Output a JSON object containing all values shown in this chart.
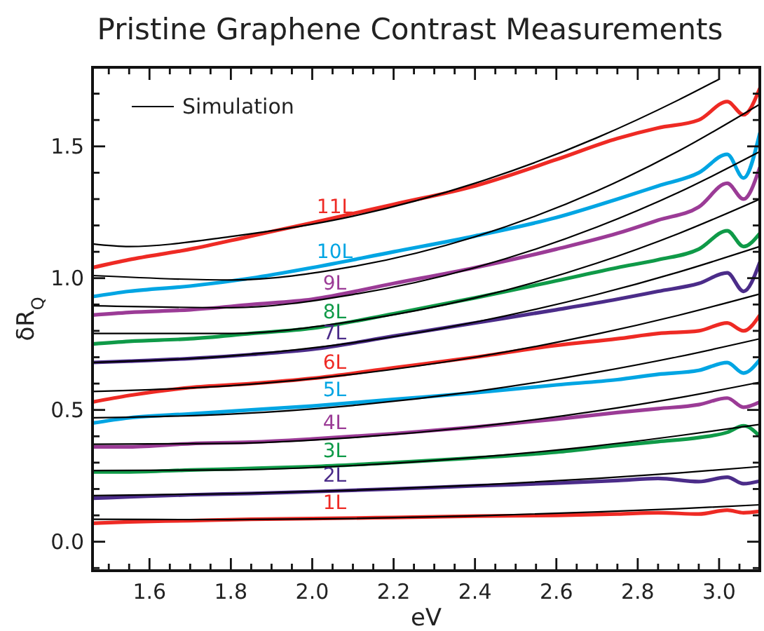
{
  "chart_data": {
    "type": "line",
    "title": "Pristine Graphene Contrast Measurements",
    "xlabel": "eV",
    "ylabel": "δR$_{Q}$",
    "xlim": [
      1.46,
      3.1
    ],
    "ylim": [
      -0.11,
      1.8
    ],
    "xticks": [
      {
        "value": 1.5,
        "label": null
      },
      {
        "value": 1.55,
        "label": null
      },
      1.6,
      {
        "value": 1.65,
        "label": null
      },
      {
        "value": 1.7,
        "label": null
      },
      {
        "value": 1.75,
        "label": null
      },
      1.8,
      {
        "value": 1.85,
        "label": null
      },
      {
        "value": 1.9,
        "label": null
      },
      {
        "value": 1.95,
        "label": null
      },
      {
        "value": 2.0,
        "label": "2.0"
      },
      {
        "value": 2.05,
        "label": null
      },
      {
        "value": 2.1,
        "label": null
      },
      {
        "value": 2.15,
        "label": null
      },
      2.2,
      {
        "value": 2.25,
        "label": null
      },
      {
        "value": 2.3,
        "label": null
      },
      {
        "value": 2.35,
        "label": null
      },
      2.4,
      {
        "value": 2.45,
        "label": null
      },
      {
        "value": 2.5,
        "label": null
      },
      {
        "value": 2.55,
        "label": null
      },
      2.6,
      {
        "value": 2.65,
        "label": null
      },
      {
        "value": 2.7,
        "label": null
      },
      {
        "value": 2.75,
        "label": null
      },
      2.8,
      {
        "value": 2.85,
        "label": null
      },
      {
        "value": 2.9,
        "label": null
      },
      {
        "value": 2.95,
        "label": null
      },
      {
        "value": 3.0,
        "label": "3.0"
      },
      {
        "value": 3.05,
        "label": null
      }
    ],
    "yticks": [
      {
        "value": -0.1,
        "label": null
      },
      {
        "value": 0,
        "label": "0.0"
      },
      {
        "value": 0.1,
        "label": null
      },
      {
        "value": 0.2,
        "label": null
      },
      {
        "value": 0.3,
        "label": null
      },
      {
        "value": 0.4,
        "label": null
      },
      0.5,
      {
        "value": 0.6,
        "label": null
      },
      {
        "value": 0.7,
        "label": null
      },
      {
        "value": 0.8,
        "label": null
      },
      {
        "value": 0.9,
        "label": null
      },
      {
        "value": 1.0,
        "label": "1.0"
      },
      {
        "value": 1.1,
        "label": null
      },
      {
        "value": 1.2,
        "label": null
      },
      {
        "value": 1.3,
        "label": null
      },
      {
        "value": 1.4,
        "label": null
      },
      1.5,
      {
        "value": 1.6,
        "label": null
      },
      {
        "value": 1.7,
        "label": null
      }
    ],
    "grid": false,
    "legend": "top left",
    "x": [
      1.46,
      1.55,
      1.7,
      1.85,
      2.0,
      2.2,
      2.4,
      2.6,
      2.75,
      2.85,
      2.95,
      3.02,
      3.06,
      3.1
    ],
    "series": [
      {
        "name": "1L",
        "color": "#ee2a24",
        "values": [
          0.07,
          0.075,
          0.08,
          0.085,
          0.088,
          0.092,
          0.097,
          0.1,
          0.105,
          0.11,
          0.105,
          0.12,
          0.11,
          0.115
        ]
      },
      {
        "name": "2L",
        "color": "#4b2c89",
        "values": [
          0.165,
          0.17,
          0.178,
          0.183,
          0.19,
          0.2,
          0.212,
          0.222,
          0.232,
          0.24,
          0.228,
          0.245,
          0.22,
          0.23
        ]
      },
      {
        "name": "3L",
        "color": "#0f9a48",
        "values": [
          0.265,
          0.265,
          0.272,
          0.278,
          0.285,
          0.3,
          0.318,
          0.34,
          0.365,
          0.38,
          0.395,
          0.415,
          0.44,
          0.4
        ]
      },
      {
        "name": "4L",
        "color": "#9b3b96",
        "values": [
          0.36,
          0.36,
          0.372,
          0.378,
          0.39,
          0.41,
          0.435,
          0.465,
          0.49,
          0.505,
          0.52,
          0.545,
          0.51,
          0.53
        ]
      },
      {
        "name": "5L",
        "color": "#00a5e3",
        "values": [
          0.45,
          0.47,
          0.485,
          0.5,
          0.515,
          0.54,
          0.565,
          0.595,
          0.615,
          0.635,
          0.65,
          0.68,
          0.64,
          0.69
        ]
      },
      {
        "name": "6L",
        "color": "#ee2a24",
        "values": [
          0.53,
          0.555,
          0.585,
          0.6,
          0.62,
          0.66,
          0.7,
          0.745,
          0.77,
          0.79,
          0.8,
          0.83,
          0.8,
          0.86
        ]
      },
      {
        "name": "7L",
        "color": "#4b2c89",
        "values": [
          0.68,
          0.685,
          0.695,
          0.71,
          0.73,
          0.78,
          0.83,
          0.88,
          0.92,
          0.95,
          0.98,
          1.02,
          0.95,
          1.06
        ]
      },
      {
        "name": "8L",
        "color": "#0f9a48",
        "values": [
          0.75,
          0.76,
          0.77,
          0.79,
          0.81,
          0.865,
          0.925,
          0.99,
          1.04,
          1.07,
          1.11,
          1.18,
          1.12,
          1.17
        ]
      },
      {
        "name": "9L",
        "color": "#9b3b96",
        "values": [
          0.86,
          0.87,
          0.88,
          0.9,
          0.92,
          0.98,
          1.04,
          1.11,
          1.17,
          1.22,
          1.27,
          1.36,
          1.3,
          1.42
        ]
      },
      {
        "name": "10L",
        "color": "#00a5e3",
        "values": [
          0.93,
          0.95,
          0.97,
          1.0,
          1.04,
          1.1,
          1.16,
          1.23,
          1.3,
          1.35,
          1.4,
          1.47,
          1.38,
          1.55
        ]
      },
      {
        "name": "11L",
        "color": "#ee2a24",
        "values": [
          1.04,
          1.07,
          1.11,
          1.16,
          1.21,
          1.28,
          1.35,
          1.45,
          1.53,
          1.57,
          1.6,
          1.67,
          1.62,
          1.72
        ]
      },
      {
        "name": "Simulation",
        "color": "#000000",
        "x": [
          1.46,
          1.8,
          2.1,
          2.4,
          2.7,
          2.9,
          3.1
        ],
        "values": [
          0.085,
          0.084,
          0.088,
          0.098,
          0.113,
          0.125,
          0.14
        ]
      },
      {
        "color": "#000000",
        "x": [
          1.46,
          1.8,
          2.1,
          2.4,
          2.7,
          2.9,
          3.1
        ],
        "values": [
          0.175,
          0.182,
          0.195,
          0.214,
          0.24,
          0.261,
          0.285
        ]
      },
      {
        "color": "#000000",
        "x": [
          1.46,
          1.8,
          2.1,
          2.4,
          2.7,
          2.9,
          3.1
        ],
        "values": [
          0.27,
          0.272,
          0.289,
          0.32,
          0.364,
          0.402,
          0.445
        ]
      },
      {
        "color": "#000000",
        "x": [
          1.46,
          1.8,
          2.1,
          2.4,
          2.7,
          2.9,
          3.1
        ],
        "values": [
          0.37,
          0.373,
          0.395,
          0.436,
          0.496,
          0.546,
          0.605
        ]
      },
      {
        "color": "#000000",
        "x": [
          1.46,
          1.8,
          2.1,
          2.4,
          2.7,
          2.9,
          3.1
        ],
        "values": [
          0.47,
          0.484,
          0.517,
          0.57,
          0.643,
          0.702,
          0.77
        ]
      },
      {
        "color": "#000000",
        "x": [
          1.46,
          1.8,
          2.1,
          2.4,
          2.7,
          2.9,
          3.1
        ],
        "values": [
          0.57,
          0.592,
          0.635,
          0.7,
          0.788,
          0.859,
          0.94
        ]
      },
      {
        "color": "#000000",
        "x": [
          1.46,
          1.8,
          2.1,
          2.4,
          2.7,
          2.9,
          3.1
        ],
        "values": [
          0.68,
          0.705,
          0.755,
          0.833,
          0.938,
          1.023,
          1.12
        ]
      },
      {
        "color": "#000000",
        "x": [
          1.46,
          1.8,
          2.1,
          2.4,
          2.7,
          2.9,
          3.1
        ],
        "values": [
          0.79,
          0.79,
          0.836,
          0.925,
          1.057,
          1.169,
          1.3
        ]
      },
      {
        "color": "#000000",
        "x": [
          1.46,
          1.8,
          2.1,
          2.4,
          2.7,
          2.9,
          3.1
        ],
        "values": [
          0.895,
          0.888,
          0.938,
          1.04,
          1.194,
          1.325,
          1.48
        ]
      },
      {
        "color": "#000000",
        "x": [
          1.46,
          1.8,
          2.1,
          2.4,
          2.7,
          2.9,
          3.1
        ],
        "values": [
          1.01,
          0.993,
          1.044,
          1.157,
          1.331,
          1.482,
          1.66
        ]
      },
      {
        "color": "#000000",
        "x": [
          1.46,
          1.55,
          1.8,
          2.1,
          2.4,
          2.7,
          2.9,
          3.0
        ],
        "values": [
          1.13,
          1.12,
          1.158,
          1.235,
          1.36,
          1.533,
          1.676,
          1.755
        ]
      }
    ]
  }
}
